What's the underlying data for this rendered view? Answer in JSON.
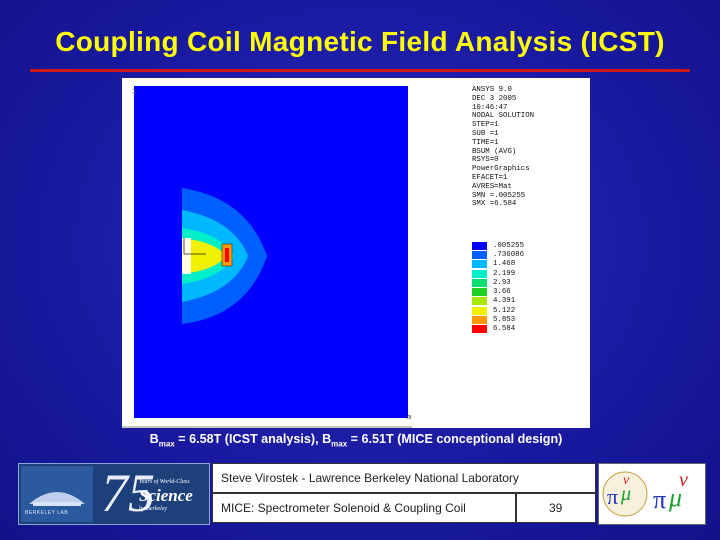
{
  "slide": {
    "title": "Coupling Coil Magnetic Field Analysis (ICST)",
    "caption": {
      "b1": "B",
      "sub1": "max",
      "text1": " = 6.58T (ICST analysis), B",
      "sub2": "max",
      "text2": " = 6.51T (MICE conceptional design)"
    }
  },
  "figure": {
    "axis_mark": "1",
    "corner_label": "m",
    "readout": [
      "ANSYS 9.0",
      "DEC  3 2005",
      "10:46:47",
      "NODAL SOLUTION",
      "STEP=1",
      "SUB =1",
      "TIME=1",
      "BSUM       (AVG)",
      "RSYS=0",
      "PowerGraphics",
      "EFACET=1",
      "AVRES=Mat",
      "SMN =.005255",
      "SMX =6.584"
    ],
    "legend": [
      {
        "label": ".005255",
        "color": "#0000ff"
      },
      {
        "label": ".736086",
        "color": "#0060ff"
      },
      {
        "label": "1.468",
        "color": "#00b8ff"
      },
      {
        "label": "2.199",
        "color": "#00eec8"
      },
      {
        "label": "2.93",
        "color": "#00e070"
      },
      {
        "label": "3.66",
        "color": "#20d020"
      },
      {
        "label": "4.391",
        "color": "#a8e800"
      },
      {
        "label": "5.122",
        "color": "#f0f000"
      },
      {
        "label": "5.853",
        "color": "#ff9800"
      },
      {
        "label": "6.584",
        "color": "#ff0000"
      }
    ]
  },
  "footer": {
    "author": "Steve Virostek - Lawrence Berkeley National Laboratory",
    "project": "MICE: Spectrometer Solenoid & Coupling Coil",
    "page_number": "39",
    "logo": {
      "years": "75",
      "line1": "Years of World-Class",
      "line2": "Science",
      "line3": "by Berkeley",
      "lab": "BERKELEY LAB"
    }
  },
  "colors": {
    "background": "#1a1aa2",
    "title": "#ffff00",
    "rule": "#d01818"
  }
}
